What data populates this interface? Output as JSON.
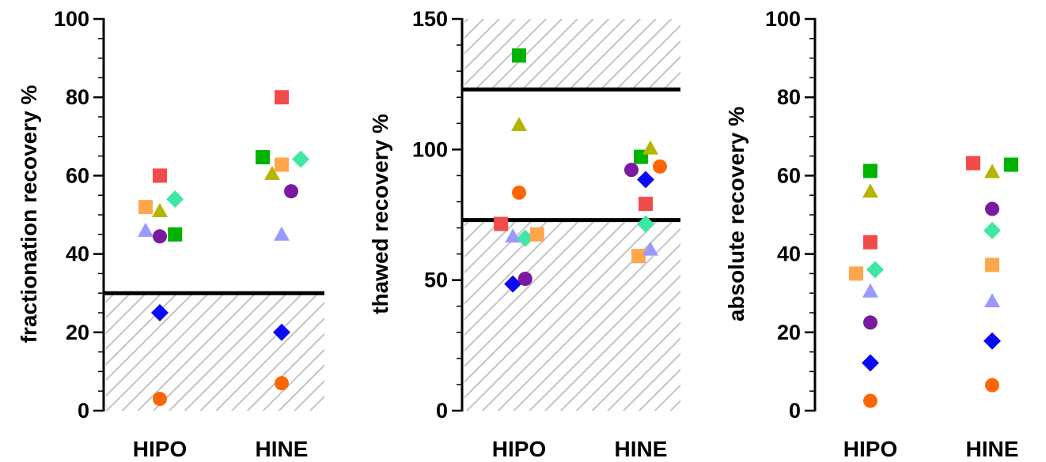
{
  "chart_data": [
    {
      "type": "scatter",
      "ylabel": "fractionation recovery %",
      "categories": [
        "HIPO",
        "HINE"
      ],
      "ylim": [
        0,
        100
      ],
      "y_major_ticks": [
        0,
        20,
        40,
        60,
        80,
        100
      ],
      "y_minor_step": 5,
      "reference_lines": [
        30
      ],
      "shaded_ranges": [
        [
          0,
          30
        ]
      ],
      "points": [
        {
          "category": "HIPO",
          "offset": 0.0,
          "y": 60,
          "marker": "square",
          "color": "#f24b4b"
        },
        {
          "category": "HIPO",
          "offset": -0.3,
          "y": 52,
          "marker": "square",
          "color": "#ffa64d"
        },
        {
          "category": "HIPO",
          "offset": 0.0,
          "y": 51,
          "marker": "triangle",
          "color": "#b5b500"
        },
        {
          "category": "HIPO",
          "offset": 0.32,
          "y": 54,
          "marker": "diamond",
          "color": "#40e6a6"
        },
        {
          "category": "HIPO",
          "offset": -0.3,
          "y": 46,
          "marker": "triangle",
          "color": "#9999ff"
        },
        {
          "category": "HIPO",
          "offset": 0.0,
          "y": 44.5,
          "marker": "circle",
          "color": "#7a1aa0"
        },
        {
          "category": "HIPO",
          "offset": 0.32,
          "y": 45,
          "marker": "square",
          "color": "#00b300"
        },
        {
          "category": "HIPO",
          "offset": 0.0,
          "y": 25,
          "marker": "diamond",
          "color": "#0a0af5"
        },
        {
          "category": "HIPO",
          "offset": 0.0,
          "y": 3,
          "marker": "circle",
          "color": "#ff6600"
        },
        {
          "category": "HINE",
          "offset": 0.0,
          "y": 80,
          "marker": "square",
          "color": "#f24b4b"
        },
        {
          "category": "HINE",
          "offset": -0.4,
          "y": 64.7,
          "marker": "square",
          "color": "#00b300"
        },
        {
          "category": "HINE",
          "offset": 0.0,
          "y": 62.8,
          "marker": "square",
          "color": "#ffa64d"
        },
        {
          "category": "HINE",
          "offset": 0.4,
          "y": 64.2,
          "marker": "diamond",
          "color": "#40e6a6"
        },
        {
          "category": "HINE",
          "offset": -0.2,
          "y": 60.5,
          "marker": "triangle",
          "color": "#b5b500"
        },
        {
          "category": "HINE",
          "offset": 0.2,
          "y": 56,
          "marker": "circle",
          "color": "#7a1aa0"
        },
        {
          "category": "HINE",
          "offset": 0.0,
          "y": 45,
          "marker": "triangle",
          "color": "#9999ff"
        },
        {
          "category": "HINE",
          "offset": 0.0,
          "y": 20,
          "marker": "diamond",
          "color": "#0a0af5"
        },
        {
          "category": "HINE",
          "offset": 0.0,
          "y": 7,
          "marker": "circle",
          "color": "#ff6600"
        }
      ]
    },
    {
      "type": "scatter",
      "ylabel": "thawed recovery %",
      "categories": [
        "HIPO",
        "HINE"
      ],
      "ylim": [
        0,
        150
      ],
      "y_major_ticks": [
        0,
        50,
        100,
        150
      ],
      "y_minor_step": 10,
      "reference_lines": [
        73,
        123
      ],
      "shaded_ranges": [
        [
          0,
          73
        ],
        [
          123,
          150
        ]
      ],
      "points": [
        {
          "category": "HIPO",
          "offset": 0.0,
          "y": 136,
          "marker": "square",
          "color": "#00b300"
        },
        {
          "category": "HIPO",
          "offset": 0.0,
          "y": 109.5,
          "marker": "triangle",
          "color": "#b5b500"
        },
        {
          "category": "HIPO",
          "offset": 0.0,
          "y": 83.5,
          "marker": "circle",
          "color": "#ff6600"
        },
        {
          "category": "HIPO",
          "offset": -0.38,
          "y": 71.5,
          "marker": "square",
          "color": "#f24b4b"
        },
        {
          "category": "HIPO",
          "offset": -0.13,
          "y": 66.8,
          "marker": "triangle",
          "color": "#9999ff"
        },
        {
          "category": "HIPO",
          "offset": 0.13,
          "y": 66,
          "marker": "diamond",
          "color": "#40e6a6"
        },
        {
          "category": "HIPO",
          "offset": 0.38,
          "y": 67.5,
          "marker": "square",
          "color": "#ffa64d"
        },
        {
          "category": "HIPO",
          "offset": -0.13,
          "y": 48.5,
          "marker": "diamond",
          "color": "#0a0af5"
        },
        {
          "category": "HIPO",
          "offset": 0.13,
          "y": 50.5,
          "marker": "circle",
          "color": "#7a1aa0"
        },
        {
          "category": "HINE",
          "offset": 0.0,
          "y": 97.2,
          "marker": "square",
          "color": "#00b300"
        },
        {
          "category": "HINE",
          "offset": 0.2,
          "y": 100.5,
          "marker": "triangle",
          "color": "#b5b500"
        },
        {
          "category": "HINE",
          "offset": -0.2,
          "y": 92.2,
          "marker": "circle",
          "color": "#7a1aa0"
        },
        {
          "category": "HINE",
          "offset": 0.4,
          "y": 93.5,
          "marker": "circle",
          "color": "#ff6600"
        },
        {
          "category": "HINE",
          "offset": 0.1,
          "y": 88.5,
          "marker": "diamond",
          "color": "#0a0af5"
        },
        {
          "category": "HINE",
          "offset": 0.1,
          "y": 79.2,
          "marker": "square",
          "color": "#f24b4b"
        },
        {
          "category": "HINE",
          "offset": 0.1,
          "y": 71.5,
          "marker": "diamond",
          "color": "#40e6a6"
        },
        {
          "category": "HINE",
          "offset": -0.05,
          "y": 59.2,
          "marker": "square",
          "color": "#ffa64d"
        },
        {
          "category": "HINE",
          "offset": 0.2,
          "y": 61.8,
          "marker": "triangle",
          "color": "#9999ff"
        }
      ]
    },
    {
      "type": "scatter",
      "ylabel": "absolute recovery %",
      "categories": [
        "HIPO",
        "HINE"
      ],
      "ylim": [
        0,
        100
      ],
      "y_major_ticks": [
        0,
        20,
        40,
        60,
        80,
        100
      ],
      "y_minor_step": 5,
      "reference_lines": [],
      "shaded_ranges": [],
      "points": [
        {
          "category": "HIPO",
          "offset": 0.0,
          "y": 61.2,
          "marker": "square",
          "color": "#00b300"
        },
        {
          "category": "HIPO",
          "offset": 0.0,
          "y": 56,
          "marker": "triangle",
          "color": "#b5b500"
        },
        {
          "category": "HIPO",
          "offset": 0.0,
          "y": 43,
          "marker": "square",
          "color": "#f24b4b"
        },
        {
          "category": "HIPO",
          "offset": -0.3,
          "y": 35,
          "marker": "square",
          "color": "#ffa64d"
        },
        {
          "category": "HIPO",
          "offset": 0.1,
          "y": 36,
          "marker": "diamond",
          "color": "#40e6a6"
        },
        {
          "category": "HIPO",
          "offset": 0.0,
          "y": 30.5,
          "marker": "triangle",
          "color": "#9999ff"
        },
        {
          "category": "HIPO",
          "offset": 0.0,
          "y": 22.5,
          "marker": "circle",
          "color": "#7a1aa0"
        },
        {
          "category": "HIPO",
          "offset": 0.0,
          "y": 12.2,
          "marker": "diamond",
          "color": "#0a0af5"
        },
        {
          "category": "HIPO",
          "offset": 0.0,
          "y": 2.5,
          "marker": "circle",
          "color": "#ff6600"
        },
        {
          "category": "HINE",
          "offset": -0.4,
          "y": 63.2,
          "marker": "square",
          "color": "#f24b4b"
        },
        {
          "category": "HINE",
          "offset": 0.0,
          "y": 61,
          "marker": "triangle",
          "color": "#b5b500"
        },
        {
          "category": "HINE",
          "offset": 0.4,
          "y": 62.8,
          "marker": "square",
          "color": "#00b300"
        },
        {
          "category": "HINE",
          "offset": 0.0,
          "y": 51.5,
          "marker": "circle",
          "color": "#7a1aa0"
        },
        {
          "category": "HINE",
          "offset": 0.0,
          "y": 46,
          "marker": "diamond",
          "color": "#40e6a6"
        },
        {
          "category": "HINE",
          "offset": 0.0,
          "y": 37.2,
          "marker": "square",
          "color": "#ffa64d"
        },
        {
          "category": "HINE",
          "offset": 0.0,
          "y": 28,
          "marker": "triangle",
          "color": "#9999ff"
        },
        {
          "category": "HINE",
          "offset": 0.0,
          "y": 17.8,
          "marker": "diamond",
          "color": "#0a0af5"
        },
        {
          "category": "HINE",
          "offset": 0.0,
          "y": 6.5,
          "marker": "circle",
          "color": "#ff6600"
        }
      ]
    }
  ]
}
